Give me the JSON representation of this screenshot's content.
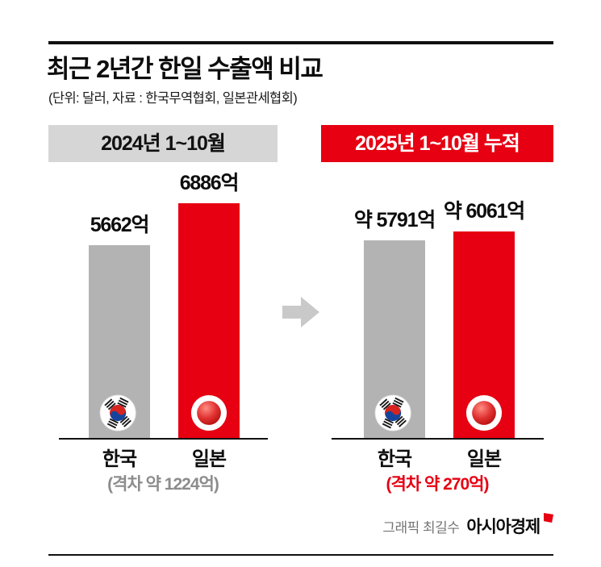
{
  "title": "최근 2년간 한일 수출액 비교",
  "subtitle": "(단위: 달러, 자료 : 한국무역협회, 일본관세협회)",
  "colors": {
    "accent_red": "#e60012",
    "bar_gray": "#b3b3b3",
    "band_gray": "#d6d6d6",
    "gap_gray": "#8c8c8c",
    "arrow_gray": "#c9c9c9"
  },
  "credits": {
    "graphic": "그래픽 최길수",
    "brand": "아시아경제"
  },
  "chart_data": [
    {
      "type": "bar",
      "title": "2024년 1~10월",
      "categories": [
        "한국",
        "일본"
      ],
      "values": [
        5662,
        6886
      ],
      "value_labels": [
        "5662억",
        "6886억"
      ],
      "colors": [
        "#b3b3b3",
        "#e60012"
      ],
      "gap_label": "(격차 약 1224억)",
      "ylim": [
        0,
        6886
      ],
      "legend": "none",
      "grid": false
    },
    {
      "type": "bar",
      "title": "2025년 1~10월 누적",
      "categories": [
        "한국",
        "일본"
      ],
      "values": [
        5791,
        6061
      ],
      "value_labels": [
        "약 5791억",
        "약 6061억"
      ],
      "colors": [
        "#b3b3b3",
        "#e60012"
      ],
      "gap_label": "(격차 약 270억)",
      "ylim": [
        0,
        6886
      ],
      "legend": "none",
      "grid": false
    }
  ]
}
